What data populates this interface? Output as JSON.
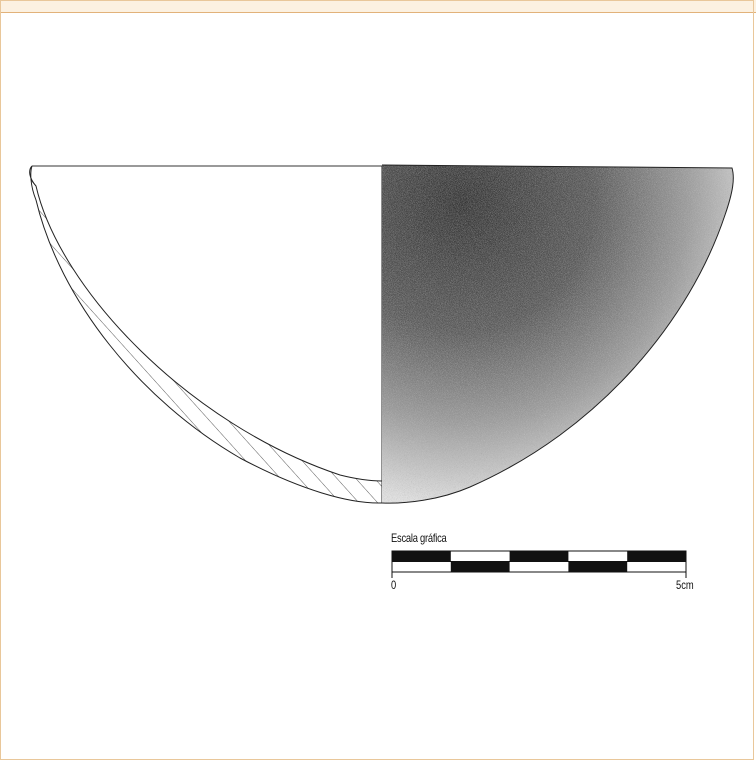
{
  "drawing": {
    "scale": {
      "title": "Escala gráfica",
      "start_label": "0",
      "end_label": "5cm",
      "segments": 5
    },
    "colors": {
      "frame_border": "#e9c79a",
      "top_strip": "#fcf1e1",
      "ink": "#222222"
    }
  }
}
